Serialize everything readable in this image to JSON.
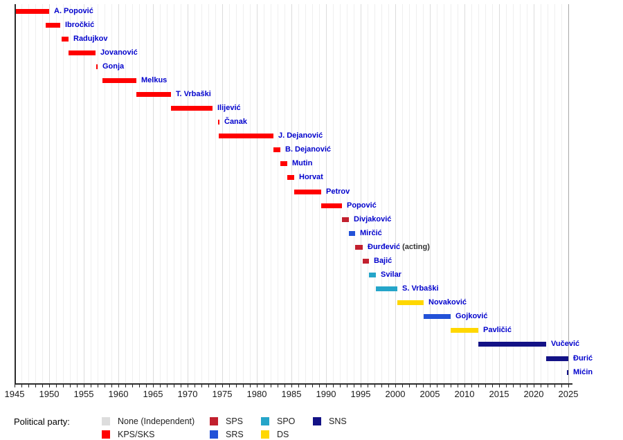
{
  "chart_data": {
    "type": "bar",
    "variant": "gantt-timeline",
    "title": "",
    "xlabel": "",
    "ylabel": "",
    "x_axis": {
      "min": 1945,
      "max": 2025,
      "minor_tick_interval": 1,
      "labeled_tick_interval": 5,
      "tick_labels": [
        "1945",
        "1950",
        "1955",
        "1960",
        "1965",
        "1970",
        "1975",
        "1980",
        "1985",
        "1990",
        "1995",
        "2000",
        "2005",
        "2010",
        "2015",
        "2020",
        "2025"
      ]
    },
    "grid": "vertical yearly, darker every 5 years",
    "bars": [
      {
        "label": "A. Popović",
        "party": "KPS/SKS",
        "start": 1945.0,
        "end": 1950.0
      },
      {
        "label": "Ibročkić",
        "party": "KPS/SKS",
        "start": 1949.5,
        "end": 1951.6
      },
      {
        "label": "Radujkov",
        "party": "KPS/SKS",
        "start": 1951.8,
        "end": 1952.8
      },
      {
        "label": "Jovanović",
        "party": "KPS/SKS",
        "start": 1952.8,
        "end": 1956.7
      },
      {
        "label": "Gonja",
        "party": "KPS/SKS",
        "start": 1956.8,
        "end": 1957.0
      },
      {
        "label": "Melkus",
        "party": "KPS/SKS",
        "start": 1957.7,
        "end": 1962.6
      },
      {
        "label": "T. Vrbaški",
        "party": "KPS/SKS",
        "start": 1962.6,
        "end": 1967.6
      },
      {
        "label": "Ilijević",
        "party": "KPS/SKS",
        "start": 1967.6,
        "end": 1973.6
      },
      {
        "label": "Čanak",
        "party": "KPS/SKS",
        "start": 1974.4,
        "end": 1974.6
      },
      {
        "label": "J. Dejanović",
        "party": "KPS/SKS",
        "start": 1974.5,
        "end": 1982.4
      },
      {
        "label": "B. Dejanović",
        "party": "KPS/SKS",
        "start": 1982.4,
        "end": 1983.4
      },
      {
        "label": "Mutin",
        "party": "KPS/SKS",
        "start": 1983.4,
        "end": 1984.4
      },
      {
        "label": "Horvat",
        "party": "KPS/SKS",
        "start": 1984.4,
        "end": 1985.4
      },
      {
        "label": "Petrov",
        "party": "KPS/SKS",
        "start": 1985.4,
        "end": 1989.3
      },
      {
        "label": "Popović",
        "party": "KPS/SKS",
        "start": 1989.3,
        "end": 1992.3
      },
      {
        "label": "Divjaković",
        "party": "SPS",
        "start": 1992.3,
        "end": 1993.3
      },
      {
        "label": "Mirčić",
        "party": "SRS",
        "start": 1993.3,
        "end": 1994.2
      },
      {
        "label": "Đurđević",
        "suffix": " (acting)",
        "party": "SPS",
        "start": 1994.2,
        "end": 1995.3
      },
      {
        "label": "Bajić",
        "party": "SPS",
        "start": 1995.3,
        "end": 1996.2
      },
      {
        "label": "Svilar",
        "party": "SPO",
        "start": 1996.2,
        "end": 1997.2
      },
      {
        "label": "S. Vrbaški",
        "party": "SPO",
        "start": 1997.2,
        "end": 2000.3
      },
      {
        "label": "Novaković",
        "party": "DS",
        "start": 2000.3,
        "end": 2004.1
      },
      {
        "label": "Gojković",
        "party": "SRS",
        "start": 2004.1,
        "end": 2008.0
      },
      {
        "label": "Pavličić",
        "party": "DS",
        "start": 2008.0,
        "end": 2012.0
      },
      {
        "label": "Vučević",
        "party": "SNS",
        "start": 2012.0,
        "end": 2021.8
      },
      {
        "label": "Đurić",
        "party": "SNS",
        "start": 2021.8,
        "end": 2025.0
      },
      {
        "label": "Mićin",
        "party": "SNS",
        "start": 2024.8,
        "end": 2025.0
      }
    ]
  },
  "party_colors": {
    "None": "#DDDDDD",
    "KPS/SKS": "#FF0000",
    "SPS": "#C2202E",
    "SRS": "#2352D8",
    "SPO": "#25A5C9",
    "DS": "#FFD700",
    "SNS": "#131286"
  },
  "text_colors": {
    "person_label": "#0000CC",
    "suffix": "#333333",
    "axis_label": "#1A1A1A"
  },
  "legend": {
    "title": "Political party:",
    "items": [
      {
        "label": "None (Independent)",
        "color": "#DDDDDD"
      },
      {
        "label": "KPS/SKS",
        "color": "#FF0000"
      },
      {
        "label": "SPS",
        "color": "#C2202E"
      },
      {
        "label": "SRS",
        "color": "#2352D8"
      },
      {
        "label": "SPO",
        "color": "#25A5C9"
      },
      {
        "label": "DS",
        "color": "#FFD700"
      },
      {
        "label": "SNS",
        "color": "#131286"
      }
    ],
    "columns": [
      [
        0,
        1
      ],
      [
        2,
        3
      ],
      [
        4,
        5
      ],
      [
        6
      ]
    ]
  }
}
